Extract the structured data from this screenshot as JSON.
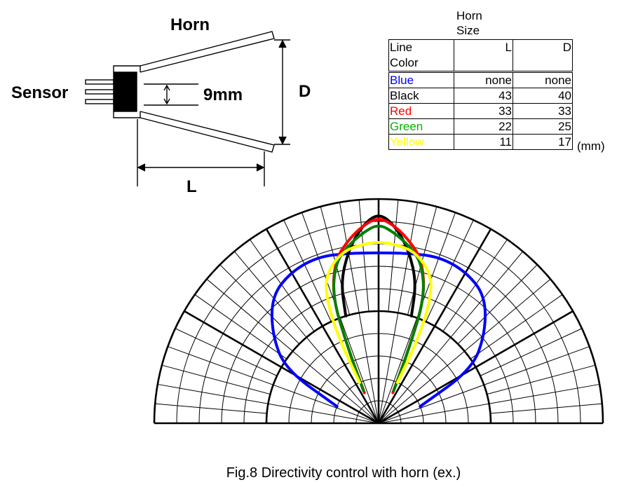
{
  "diagram": {
    "horn_label": "Horn",
    "sensor_label": "Sensor",
    "dimension_9mm": "9mm",
    "dimension_d": "D",
    "dimension_l": "L"
  },
  "table": {
    "header_top": "Horn",
    "header_bottom": "Size",
    "col1_header_line1": "Line",
    "col1_header_line2": "Color",
    "col2_header": "L",
    "col3_header": "D",
    "unit": "(mm)",
    "rows": [
      {
        "color_name": "Blue",
        "color": "#0000ff",
        "L": "none",
        "D": "none"
      },
      {
        "color_name": "Black",
        "color": "#000000",
        "L": "43",
        "D": "40"
      },
      {
        "color_name": "Red",
        "color": "#ff0000",
        "L": "33",
        "D": "33"
      },
      {
        "color_name": "Green",
        "color": "#00b400",
        "L": "22",
        "D": "25"
      },
      {
        "color_name": "Yellow",
        "color": "#ffff00",
        "L": "11",
        "D": "17"
      }
    ]
  },
  "caption": "Fig.8 Directivity control with horn (ex.)",
  "chart_data": {
    "type": "polar",
    "r_range": [
      0,
      1
    ],
    "theta_range_deg": [
      -90,
      90
    ],
    "grid": true,
    "series": [
      {
        "name": "Blue",
        "color": "#0000ff",
        "theta_deg": [
          -68,
          -60,
          -50,
          -40,
          -30,
          -20,
          -10,
          0,
          10,
          20,
          30,
          40,
          50,
          60,
          68
        ],
        "r": [
          0.2,
          0.48,
          0.62,
          0.74,
          0.78,
          0.79,
          0.77,
          0.76,
          0.77,
          0.79,
          0.78,
          0.74,
          0.62,
          0.48,
          0.2
        ]
      },
      {
        "name": "Black",
        "color": "#000000",
        "theta_deg": [
          -17,
          -15,
          -10,
          -5,
          0,
          5,
          10,
          15,
          17
        ],
        "r": [
          0.5,
          0.65,
          0.78,
          0.88,
          0.94,
          0.88,
          0.78,
          0.65,
          0.5
        ]
      },
      {
        "name": "Red",
        "color": "#ff0000",
        "theta_deg": [
          -25,
          -22,
          -20,
          -15,
          -10,
          -5,
          0,
          5,
          10,
          15,
          20,
          22,
          25
        ],
        "r": [
          0.15,
          0.38,
          0.6,
          0.75,
          0.82,
          0.88,
          0.92,
          0.88,
          0.82,
          0.75,
          0.6,
          0.38,
          0.15
        ]
      },
      {
        "name": "Green",
        "color": "#008000",
        "theta_deg": [
          -25,
          -22,
          -20,
          -15,
          -10,
          -5,
          0,
          5,
          10,
          15,
          20,
          22,
          25
        ],
        "r": [
          0.16,
          0.38,
          0.6,
          0.74,
          0.8,
          0.85,
          0.89,
          0.85,
          0.8,
          0.74,
          0.6,
          0.38,
          0.16
        ]
      },
      {
        "name": "Yellow",
        "color": "#ffff00",
        "theta_deg": [
          -25,
          -25,
          -22,
          -18,
          -12,
          -6,
          0,
          6,
          12,
          18,
          22,
          25,
          25
        ],
        "r": [
          0.2,
          0.45,
          0.64,
          0.72,
          0.78,
          0.8,
          0.81,
          0.8,
          0.78,
          0.72,
          0.64,
          0.45,
          0.2
        ]
      }
    ]
  }
}
